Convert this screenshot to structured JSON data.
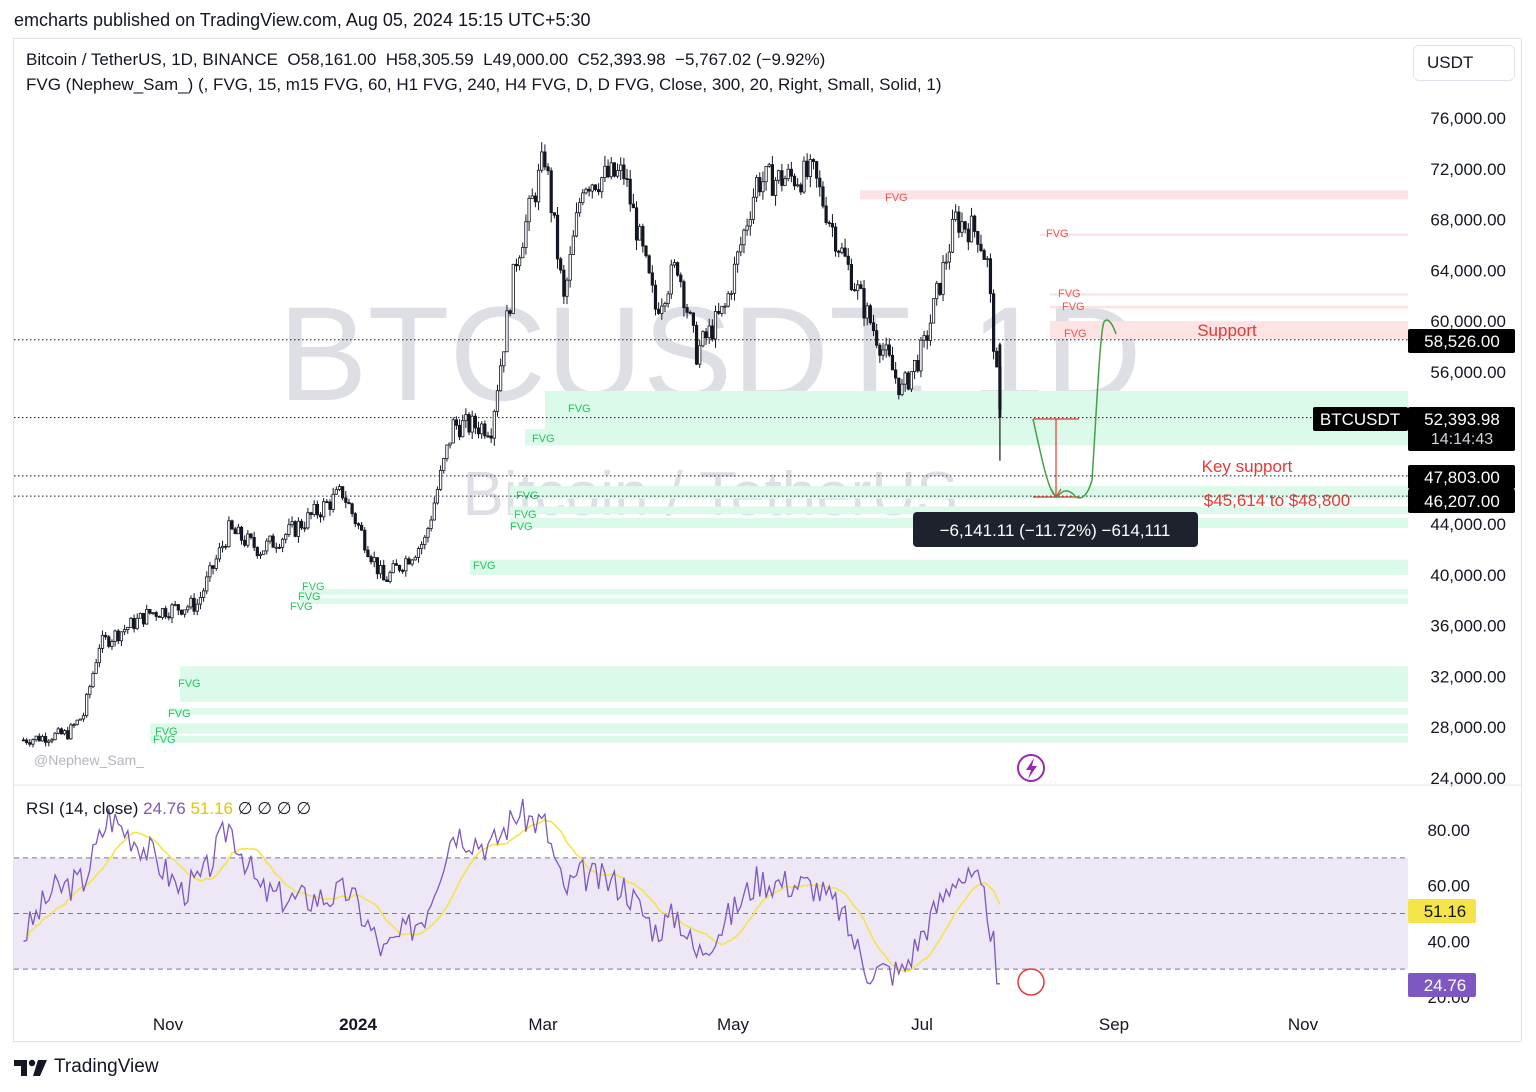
{
  "header": {
    "publisher_line": "emcharts published on TradingView.com, Aug 05, 2024 15:15 UTC+5:30"
  },
  "legend": {
    "symbol": "Bitcoin / TetherUS, 1D, BINANCE",
    "o_label": "O",
    "o": "58,161.00",
    "h_label": "H",
    "h": "58,305.59",
    "l_label": "L",
    "l": "49,000.00",
    "c_label": "C",
    "c": "52,393.98",
    "change": "−5,767.02 (−9.92%)",
    "indicator": "FVG (Nephew_Sam_) (, FVG, 15, m15 FVG, 60, H1 FVG, 240, H4 FVG, D, D FVG, Close, 300, 20, Right, Small, Solid, 1)"
  },
  "currency_button": "USDT",
  "watermark": {
    "symbol": "BTCUSDT, 1D",
    "name": "Bitcoin / TetherUS"
  },
  "author_tag": "@Nephew_Sam_",
  "fvg_label": "FVG",
  "annotations": {
    "support": "Support",
    "key_support": "Key support",
    "key_support_range": "$45,614 to $48,800",
    "measure": "−6,141.11 (−11.72%) −614,111"
  },
  "price_tags": {
    "level_1": "58,526.00",
    "symbol_tag": "BTCUSDT",
    "last_price": "52,393.98",
    "countdown": "14:14:43",
    "level_2": "47,803.00",
    "level_3": "46,207.00"
  },
  "rsi": {
    "label": "RSI (14, close)",
    "value": "24.76",
    "ma_value": "51.16",
    "extras": "∅ ∅ ∅ ∅",
    "upper_band": 70,
    "lower_band": 30,
    "mid": 50
  },
  "colors": {
    "up_candle": "#26a69a",
    "down_candle": "#ef5350",
    "candle": "#131722",
    "fvg_bull": "#dcfae9",
    "fvg_bear": "#fde3e3",
    "fvg_bull_text": "#22c55e",
    "fvg_bear_text": "#ef5350",
    "rsi_line": "#7e57c2",
    "rsi_ma": "#f5e34a",
    "rsi_band": "#ede7f6",
    "annotation_red": "#e53935",
    "path_green": "#43a047"
  },
  "brand": "TradingView",
  "chart_data": {
    "type": "candlestick",
    "title": "Bitcoin / TetherUS, 1D, BINANCE",
    "y_axis": {
      "ticks": [
        "76,000.00",
        "72,000.00",
        "68,000.00",
        "64,000.00",
        "60,000.00",
        "56,000.00",
        "44,000.00",
        "40,000.00",
        "36,000.00",
        "32,000.00",
        "28,000.00",
        "24,000.00"
      ],
      "ylim": [
        24000,
        77000
      ]
    },
    "x_axis": {
      "ticks": [
        "Nov",
        "2024",
        "Mar",
        "May",
        "Jul",
        "Sep",
        "Nov"
      ]
    },
    "price_path": [
      [
        "2023-10-01",
        27000
      ],
      [
        "2023-10-15",
        27500
      ],
      [
        "2023-10-20",
        29000
      ],
      [
        "2023-10-25",
        34500
      ],
      [
        "2023-11-10",
        37000
      ],
      [
        "2023-11-25",
        37700
      ],
      [
        "2023-12-05",
        43500
      ],
      [
        "2023-12-15",
        42000
      ],
      [
        "2023-12-25",
        43500
      ],
      [
        "2024-01-10",
        46500
      ],
      [
        "2024-01-23",
        39500
      ],
      [
        "2024-02-05",
        42700
      ],
      [
        "2024-02-14",
        51800
      ],
      [
        "2024-02-26",
        51700
      ],
      [
        "2024-03-05",
        65000
      ],
      [
        "2024-03-14",
        73000
      ],
      [
        "2024-03-20",
        61500
      ],
      [
        "2024-03-26",
        71000
      ],
      [
        "2024-04-08",
        71600
      ],
      [
        "2024-04-18",
        61000
      ],
      [
        "2024-04-25",
        64500
      ],
      [
        "2024-05-01",
        57500
      ],
      [
        "2024-05-10",
        61000
      ],
      [
        "2024-05-20",
        71000
      ],
      [
        "2024-06-07",
        71500
      ],
      [
        "2024-06-15",
        66000
      ],
      [
        "2024-06-24",
        60500
      ],
      [
        "2024-07-05",
        54500
      ],
      [
        "2024-07-12",
        58000
      ],
      [
        "2024-07-22",
        68000
      ],
      [
        "2024-07-29",
        67000
      ],
      [
        "2024-08-01",
        64500
      ],
      [
        "2024-08-05",
        52394
      ]
    ],
    "horizontal_levels": [
      58526,
      52394,
      47803,
      46207
    ],
    "fvg_zones_bullish": [
      [
        51000,
        54500
      ],
      [
        50200,
        51500
      ],
      [
        46000,
        47000
      ],
      [
        44800,
        45400
      ],
      [
        43700,
        44500
      ],
      [
        40000,
        41200
      ],
      [
        38400,
        38900
      ],
      [
        37700,
        38200
      ],
      [
        30000,
        32800
      ],
      [
        29000,
        29500
      ],
      [
        27500,
        28300
      ],
      [
        26800,
        27300
      ]
    ],
    "fvg_zones_bearish": [
      [
        69600,
        70300
      ],
      [
        66700,
        66900
      ],
      [
        62000,
        62200
      ],
      [
        61000,
        61200
      ],
      [
        58600,
        60000
      ]
    ],
    "rsi_series": {
      "name": "RSI (14, close)",
      "ylim": [
        20,
        90
      ],
      "ticks": [
        "80.00",
        "60.00",
        "40.00",
        "20.00"
      ],
      "points": [
        [
          "2023-10-01",
          42
        ],
        [
          "2023-10-10",
          58
        ],
        [
          "2023-10-20",
          62
        ],
        [
          "2023-10-28",
          85
        ],
        [
          "2023-11-10",
          72
        ],
        [
          "2023-11-20",
          58
        ],
        [
          "2023-11-27",
          63
        ],
        [
          "2023-12-05",
          82
        ],
        [
          "2023-12-15",
          58
        ],
        [
          "2023-12-25",
          55
        ],
        [
          "2024-01-05",
          56
        ],
        [
          "2024-01-12",
          58
        ],
        [
          "2024-01-23",
          36
        ],
        [
          "2024-02-05",
          50
        ],
        [
          "2024-02-14",
          80
        ],
        [
          "2024-02-26",
          74
        ],
        [
          "2024-03-05",
          86
        ],
        [
          "2024-03-14",
          82
        ],
        [
          "2024-03-20",
          58
        ],
        [
          "2024-03-26",
          64
        ],
        [
          "2024-04-08",
          60
        ],
        [
          "2024-04-18",
          44
        ],
        [
          "2024-04-25",
          50
        ],
        [
          "2024-05-01",
          35
        ],
        [
          "2024-05-10",
          47
        ],
        [
          "2024-05-20",
          62
        ],
        [
          "2024-06-07",
          60
        ],
        [
          "2024-06-15",
          52
        ],
        [
          "2024-06-24",
          30
        ],
        [
          "2024-07-05",
          29
        ],
        [
          "2024-07-12",
          44
        ],
        [
          "2024-07-22",
          64
        ],
        [
          "2024-07-29",
          60
        ],
        [
          "2024-08-01",
          52
        ],
        [
          "2024-08-05",
          24.76
        ]
      ]
    }
  }
}
